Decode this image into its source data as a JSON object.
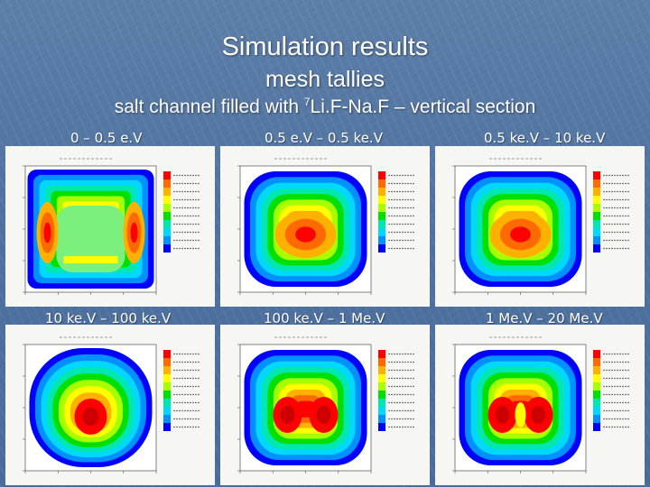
{
  "slide": {
    "title": "Simulation results",
    "subtitle": "mesh tallies",
    "heading_prefix": "salt channel filled with ",
    "heading_superscript": "7",
    "heading_suffix": "Li.F-Na.F – vertical section"
  },
  "panels": [
    {
      "label": "0 – 0.5 e.V",
      "pattern": "thermal"
    },
    {
      "label": "0.5 e.V – 0.5 ke.V",
      "pattern": "epithermal"
    },
    {
      "label": "0.5 ke.V – 10 ke.V",
      "pattern": "intermediate"
    },
    {
      "label": "10 ke.V – 100 ke.V",
      "pattern": "central"
    },
    {
      "label": "100 ke.V – 1 Me.V",
      "pattern": "double"
    },
    {
      "label": "1 Me.V – 20 Me.V",
      "pattern": "fast"
    }
  ],
  "colorscale": [
    "#ff0000",
    "#ff6a00",
    "#ffb000",
    "#ffff00",
    "#a8ff00",
    "#00e000",
    "#00e8b0",
    "#00d8ff",
    "#0090ff",
    "#0000ff"
  ],
  "colors": {
    "background": "#5b7ea8",
    "text": "#ffffff"
  }
}
